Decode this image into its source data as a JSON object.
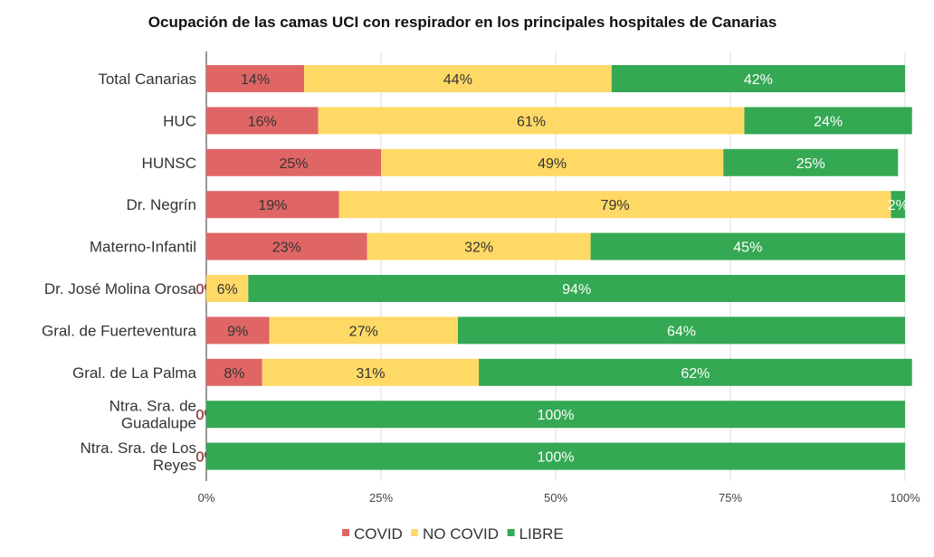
{
  "chart_data": {
    "type": "bar",
    "orientation": "horizontal",
    "stacked": true,
    "title": "Ocupación de las camas UCI con respirador en los principales hospitales de Canarias",
    "xlabel": "",
    "ylabel": "",
    "xlim": [
      0,
      100
    ],
    "x_ticks": [
      "0%",
      "25%",
      "50%",
      "75%",
      "100%"
    ],
    "grid": true,
    "legend_position": "bottom",
    "categories": [
      [
        "Total Canarias"
      ],
      [
        "HUC"
      ],
      [
        "HUNSC"
      ],
      [
        "Dr. Negrín"
      ],
      [
        "Materno-Infantil"
      ],
      [
        "Dr. José Molina Orosa"
      ],
      [
        "Gral. de Fuerteventura"
      ],
      [
        "Gral. de La Palma"
      ],
      [
        "Ntra. Sra. de",
        "Guadalupe"
      ],
      [
        "Ntra. Sra. de Los",
        "Reyes"
      ]
    ],
    "series": [
      {
        "name": "COVID",
        "color": "#e06666",
        "label_color": "#333333",
        "values": [
          14,
          16,
          25,
          19,
          23,
          0,
          9,
          8,
          0,
          0
        ],
        "labels": [
          "14%",
          "16%",
          "25%",
          "19%",
          "23%",
          "0%",
          "9%",
          "8%",
          "0%",
          "0%"
        ]
      },
      {
        "name": "NO COVID",
        "color": "#ffd966",
        "label_color": "#333333",
        "values": [
          44,
          61,
          49,
          79,
          32,
          6,
          27,
          31,
          0,
          0
        ],
        "labels": [
          "44%",
          "61%",
          "49%",
          "79%",
          "32%",
          "6%",
          "27%",
          "31%",
          "",
          ""
        ]
      },
      {
        "name": "LIBRE",
        "color": "#34a853",
        "label_color": "#ffffff",
        "values": [
          42,
          24,
          25,
          2,
          45,
          94,
          64,
          62,
          100,
          100
        ],
        "labels": [
          "42%",
          "24%",
          "25%",
          "2%",
          "45%",
          "94%",
          "64%",
          "62%",
          "100%",
          "100%"
        ]
      }
    ]
  }
}
